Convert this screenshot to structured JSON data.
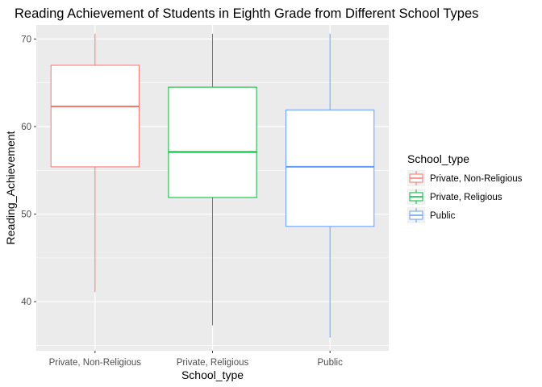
{
  "chart_data": {
    "type": "box",
    "title": "Reading Achievement of Students in Eighth Grade from Different School Types",
    "xlabel": "School_type",
    "ylabel": "Reading_Achievement",
    "ylim": [
      34.4,
      71.6
    ],
    "yticks": [
      40,
      50,
      60,
      70
    ],
    "grid": true,
    "legend": {
      "title": "School_type",
      "position": "right"
    },
    "categories": [
      "Private, Non-Religious",
      "Private, Religious",
      "Public"
    ],
    "series": [
      {
        "name": "Private, Non-Religious",
        "color": "#F8766D",
        "min": 41.1,
        "q1": 55.4,
        "median": 62.3,
        "q3": 67.0,
        "max": 70.6
      },
      {
        "name": "Private, Religious",
        "color": "#00BA38",
        "min": 37.3,
        "q1": 51.9,
        "median": 57.1,
        "q3": 64.5,
        "max": 70.6
      },
      {
        "name": "Public",
        "color": "#619CFF",
        "min": 35.9,
        "q1": 48.6,
        "median": 55.4,
        "q3": 61.9,
        "max": 70.6
      }
    ]
  }
}
